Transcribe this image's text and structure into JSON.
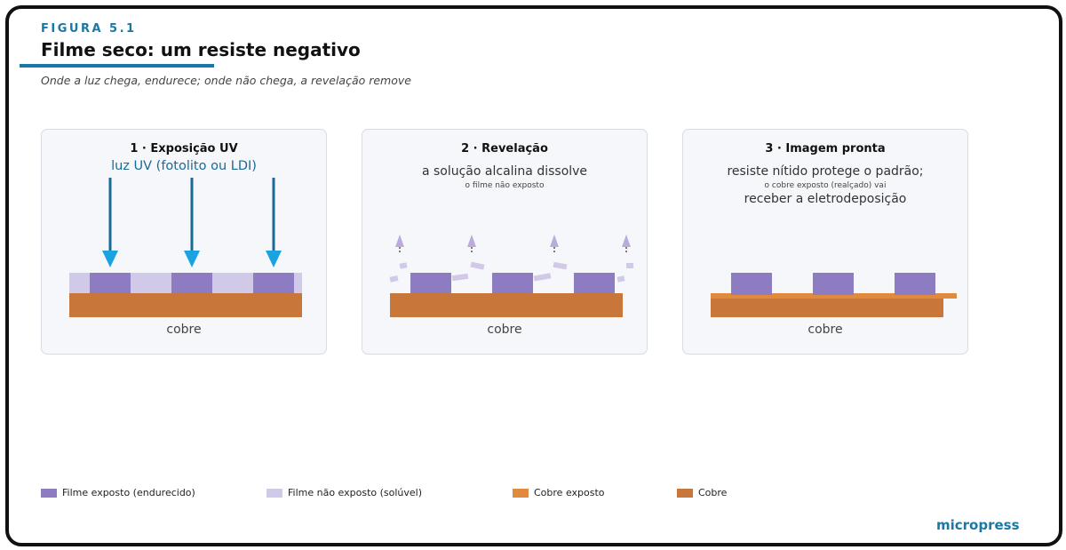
{
  "figure": {
    "label": "FIGURA 5.1",
    "title": "Filme seco: um resiste negativo",
    "subtitle": "Onde a luz chega, endurece; onde não chega, a revelação remove"
  },
  "panels": [
    {
      "title": "1 · Exposição UV",
      "caption": "luz UV (fotolito ou LDI)",
      "base_label": "cobre"
    },
    {
      "title": "2 · Revelação",
      "caption": "a solução alcalina dissolve",
      "caption_small": "o filme não exposto",
      "base_label": "cobre"
    },
    {
      "title": "3 · Imagem pronta",
      "caption": "resiste nítido protege o padrão;",
      "caption_small": "o cobre exposto (realçado) vai",
      "caption_2": "receber a eletrodeposição",
      "base_label": "cobre"
    }
  ],
  "legend": [
    {
      "label": "Filme exposto (endurecido)",
      "color": "#8e7cc3"
    },
    {
      "label": "Filme não exposto (solúvel)",
      "color": "#d1c9e8"
    },
    {
      "label": "Cobre exposto",
      "color": "#e08a3e"
    },
    {
      "label": "Cobre",
      "color": "#c8763a"
    }
  ],
  "colors": {
    "accent": "#1a78a6",
    "uv_arrow": "#1aa3e0",
    "exposed_film": "#8e7cc3",
    "unexposed_film": "#d1c9e8",
    "copper": "#c8763a",
    "exposed_copper": "#e08a3e"
  },
  "brand": "micropress"
}
